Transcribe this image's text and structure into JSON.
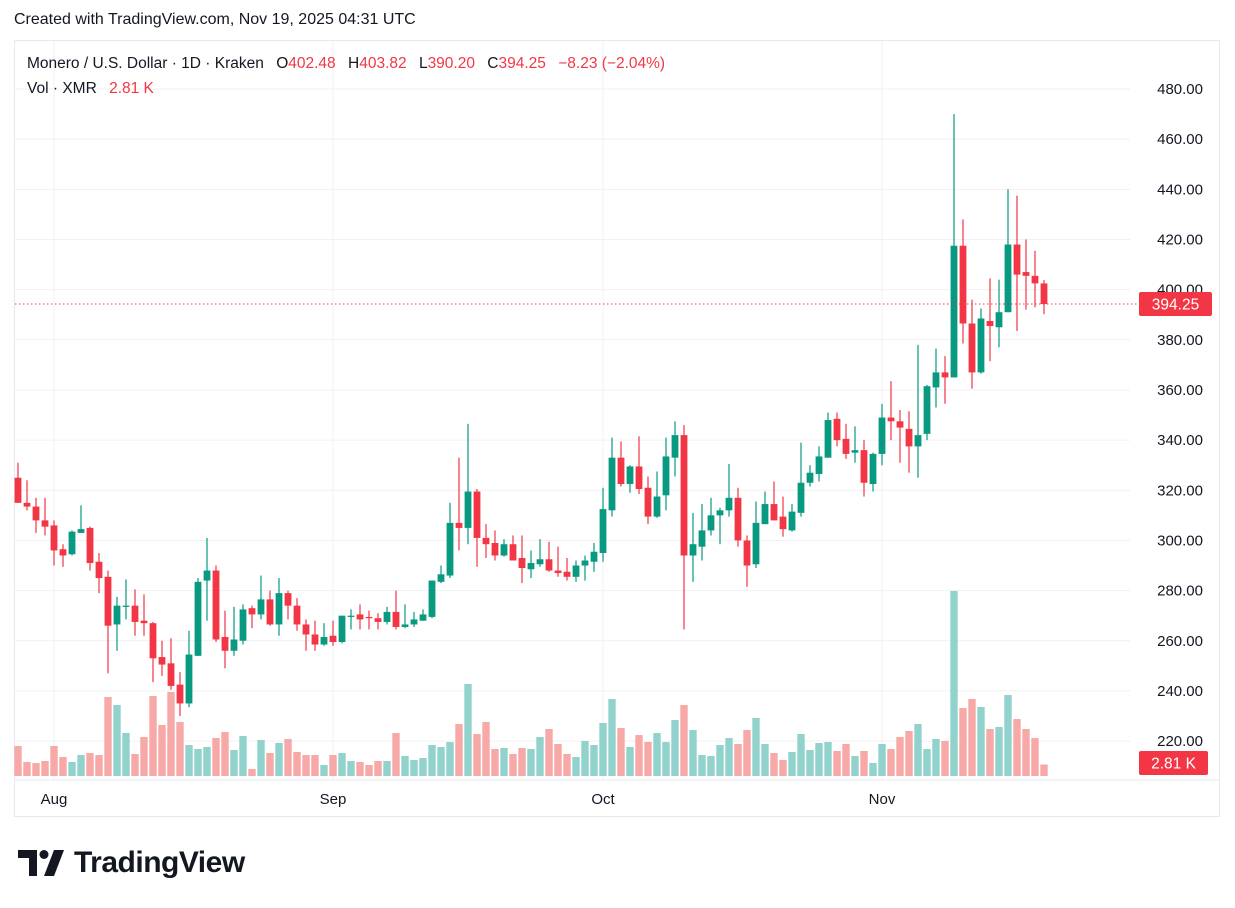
{
  "header": {
    "created": "Created with TradingView.com, Nov 19, 2025 04:31 UTC"
  },
  "legend": {
    "symbol": "Monero / U.S. Dollar · 1D · Kraken",
    "o_label": "O",
    "o": "402.48",
    "h_label": "H",
    "h": "403.82",
    "l_label": "L",
    "l": "390.20",
    "c_label": "C",
    "c": "394.25",
    "change": "−8.23 (−2.04%)",
    "vol_label": "Vol · XMR",
    "vol": "2.81 K"
  },
  "price_label": "394.25",
  "volume_label": "2.81 K",
  "logo": {
    "text": "TradingView"
  },
  "colors": {
    "up": "#089981",
    "down": "#f23645",
    "vol_up": "#92d2cc",
    "vol_down": "#f7a9a7",
    "grid": "#f0f1f4"
  },
  "chart_data": {
    "type": "candlestick",
    "ylim": [
      210,
      485
    ],
    "y_ticks": [
      "220.00",
      "240.00",
      "260.00",
      "280.00",
      "300.00",
      "320.00",
      "340.00",
      "360.00",
      "380.00",
      "400.00",
      "420.00",
      "440.00",
      "460.00",
      "480.00"
    ],
    "x_ticks": [
      {
        "label": "Aug",
        "date": "2025-08-01"
      },
      {
        "label": "Sep",
        "date": "2025-09-01"
      },
      {
        "label": "Oct",
        "date": "2025-10-01"
      },
      {
        "label": "Nov",
        "date": "2025-11-01"
      }
    ],
    "last_price": 394.25,
    "volume_unit": "K XMR",
    "columns": [
      "date",
      "open",
      "high",
      "low",
      "close",
      "volume"
    ],
    "candles": [
      [
        "2025-07-28",
        325,
        331,
        315,
        315,
        7.32
      ],
      [
        "2025-07-29",
        315,
        324,
        312,
        313.5,
        3.42
      ],
      [
        "2025-07-30",
        313.5,
        317,
        303,
        308,
        3.17
      ],
      [
        "2025-07-31",
        308,
        317,
        302,
        305.5,
        3.66
      ],
      [
        "2025-08-01",
        306,
        308,
        290,
        296,
        7.32
      ],
      [
        "2025-08-02",
        296.5,
        298.5,
        289.5,
        294,
        4.64
      ],
      [
        "2025-08-03",
        294.5,
        304,
        294,
        303.5,
        3.42
      ],
      [
        "2025-08-04",
        303,
        314,
        303,
        304.5,
        5.12
      ],
      [
        "2025-08-05",
        305,
        305.5,
        288,
        291,
        5.61
      ],
      [
        "2025-08-06",
        291.5,
        295,
        279,
        285,
        5.12
      ],
      [
        "2025-08-07",
        285.5,
        288,
        247,
        266,
        19.28
      ],
      [
        "2025-08-08",
        266.5,
        277.5,
        256,
        274,
        17.32
      ],
      [
        "2025-08-09",
        273.5,
        284.5,
        268.5,
        274,
        10.49
      ],
      [
        "2025-08-10",
        274,
        280.5,
        262,
        267.5,
        5.37
      ],
      [
        "2025-08-11",
        268,
        278.5,
        262,
        267,
        9.52
      ],
      [
        "2025-08-12",
        267,
        267.5,
        243.5,
        253,
        19.52
      ],
      [
        "2025-08-13",
        253.5,
        260,
        246,
        250.5,
        12.44
      ],
      [
        "2025-08-14",
        251,
        261,
        240.5,
        242,
        20.5
      ],
      [
        "2025-08-15",
        242.5,
        247.5,
        230,
        235,
        13.18
      ],
      [
        "2025-08-16",
        235,
        264,
        233.5,
        254.5,
        7.56
      ],
      [
        "2025-08-17",
        254,
        285,
        254,
        283.5,
        6.59
      ],
      [
        "2025-08-18",
        284,
        301,
        268,
        288,
        7.08
      ],
      [
        "2025-08-19",
        288,
        290,
        259.5,
        260.5,
        9.27
      ],
      [
        "2025-08-20",
        261.5,
        272,
        249,
        256,
        10.74
      ],
      [
        "2025-08-21",
        256,
        273.5,
        254,
        260.5,
        6.34
      ],
      [
        "2025-08-22",
        260,
        274.5,
        258.5,
        272.5,
        9.76
      ],
      [
        "2025-08-23",
        273,
        274,
        265,
        270.5,
        1.71
      ],
      [
        "2025-08-24",
        270.5,
        286,
        268.5,
        276.5,
        8.78
      ],
      [
        "2025-08-25",
        276.5,
        280,
        266,
        266.5,
        5.61
      ],
      [
        "2025-08-26",
        266.5,
        285,
        262,
        279,
        8.05
      ],
      [
        "2025-08-27",
        279,
        280,
        268.5,
        274,
        9.03
      ],
      [
        "2025-08-28",
        274,
        277,
        264,
        266.5,
        5.86
      ],
      [
        "2025-08-29",
        266.5,
        268.5,
        256,
        262.5,
        5.12
      ],
      [
        "2025-08-30",
        262.5,
        268,
        256,
        258.5,
        5.12
      ],
      [
        "2025-08-31",
        258.5,
        267,
        258,
        261.5,
        2.68
      ],
      [
        "2025-09-01",
        262,
        268,
        258,
        259.5,
        5.12
      ],
      [
        "2025-09-02",
        259.5,
        270,
        259,
        270,
        5.61
      ],
      [
        "2025-09-03",
        269.5,
        272.5,
        264.5,
        270,
        3.66
      ],
      [
        "2025-09-04",
        270.5,
        274.5,
        264.5,
        268.5,
        3.42
      ],
      [
        "2025-09-05",
        269.5,
        272,
        264.5,
        269,
        2.68
      ],
      [
        "2025-09-06",
        269,
        271,
        264.5,
        267.5,
        3.66
      ],
      [
        "2025-09-07",
        267.5,
        273.5,
        266.5,
        271.5,
        3.66
      ],
      [
        "2025-09-08",
        271.5,
        280,
        264.5,
        265.5,
        10.49
      ],
      [
        "2025-09-09",
        265.5,
        274.5,
        265,
        266.5,
        4.88
      ],
      [
        "2025-09-10",
        266.5,
        271.5,
        265.5,
        268.5,
        3.9
      ],
      [
        "2025-09-11",
        268,
        272.5,
        268,
        270.5,
        4.39
      ],
      [
        "2025-09-12",
        269.5,
        284,
        269,
        284,
        7.56
      ],
      [
        "2025-09-13",
        283.5,
        290,
        283,
        286.5,
        7.08
      ],
      [
        "2025-09-14",
        286,
        315,
        285,
        307,
        8.3
      ],
      [
        "2025-09-15",
        307,
        333,
        296,
        305,
        12.69
      ],
      [
        "2025-09-16",
        305,
        346.5,
        298.5,
        319.5,
        22.45
      ],
      [
        "2025-09-17",
        319.5,
        320.5,
        289.5,
        301,
        10.25
      ],
      [
        "2025-09-18",
        301,
        306.5,
        293,
        298.5,
        13.18
      ],
      [
        "2025-09-19",
        299,
        304,
        292,
        294,
        6.59
      ],
      [
        "2025-09-20",
        294,
        300.5,
        293.5,
        298.5,
        6.83
      ],
      [
        "2025-09-21",
        298.5,
        302,
        292,
        292,
        5.37
      ],
      [
        "2025-09-22",
        293,
        302,
        283,
        289,
        6.83
      ],
      [
        "2025-09-23",
        288.5,
        296,
        285,
        291,
        6.59
      ],
      [
        "2025-09-24",
        290.5,
        300.5,
        289.5,
        292.5,
        9.52
      ],
      [
        "2025-09-25",
        292.5,
        299.5,
        287.5,
        288,
        11.47
      ],
      [
        "2025-09-26",
        288,
        297.5,
        285.5,
        287,
        7.81
      ],
      [
        "2025-09-27",
        287.5,
        293,
        284,
        285.5,
        5.37
      ],
      [
        "2025-09-28",
        285.5,
        292,
        283.5,
        290,
        4.64
      ],
      [
        "2025-09-29",
        290,
        294,
        284,
        292,
        8.54
      ],
      [
        "2025-09-30",
        291.5,
        299,
        287.5,
        295.5,
        7.56
      ],
      [
        "2025-10-01",
        295,
        321,
        291.5,
        312.5,
        12.93
      ],
      [
        "2025-10-02",
        312,
        341,
        309.5,
        333,
        18.79
      ],
      [
        "2025-10-03",
        333,
        339.5,
        321.5,
        322.5,
        11.71
      ],
      [
        "2025-10-04",
        322.5,
        330,
        319,
        329.5,
        7.08
      ],
      [
        "2025-10-05",
        329.5,
        341.5,
        318.5,
        320.5,
        10
      ],
      [
        "2025-10-06",
        321,
        325.5,
        306.5,
        309.5,
        8.3
      ],
      [
        "2025-10-07",
        309.5,
        327.5,
        309,
        317.5,
        10.49
      ],
      [
        "2025-10-08",
        318,
        341,
        312,
        333.5,
        8.3
      ],
      [
        "2025-10-09",
        333,
        347.5,
        325.5,
        342,
        13.66
      ],
      [
        "2025-10-10",
        342,
        346,
        264.5,
        294,
        17.32
      ],
      [
        "2025-10-11",
        294,
        311,
        283.5,
        298.5,
        11.22
      ],
      [
        "2025-10-12",
        297.5,
        314.5,
        292,
        304,
        5.12
      ],
      [
        "2025-10-13",
        304,
        317,
        302,
        310,
        4.88
      ],
      [
        "2025-10-14",
        310,
        313,
        298.5,
        312,
        7.56
      ],
      [
        "2025-10-15",
        312,
        330.5,
        309.5,
        317,
        9.27
      ],
      [
        "2025-10-16",
        317,
        321,
        297.5,
        300,
        7.81
      ],
      [
        "2025-10-17",
        300,
        302,
        281.5,
        290,
        11.22
      ],
      [
        "2025-10-18",
        290.5,
        315.5,
        289,
        307,
        14.15
      ],
      [
        "2025-10-19",
        306.5,
        319.5,
        306.5,
        314.5,
        7.81
      ],
      [
        "2025-10-20",
        314.5,
        323.5,
        308,
        308,
        5.61
      ],
      [
        "2025-10-21",
        309.5,
        317.5,
        301.5,
        304.5,
        3.9
      ],
      [
        "2025-10-22",
        304,
        314.5,
        303.5,
        311.5,
        5.86
      ],
      [
        "2025-10-23",
        311,
        339,
        309.5,
        323,
        10.25
      ],
      [
        "2025-10-24",
        323,
        330,
        321.5,
        327,
        6.34
      ],
      [
        "2025-10-25",
        326.5,
        337.5,
        323.5,
        333.5,
        8.05
      ],
      [
        "2025-10-26",
        333,
        351,
        333,
        348,
        8.3
      ],
      [
        "2025-10-27",
        348.5,
        351,
        337.5,
        340,
        6.1
      ],
      [
        "2025-10-28",
        340.5,
        346.5,
        332.5,
        334.5,
        7.81
      ],
      [
        "2025-10-29",
        335,
        345.5,
        331,
        336,
        4.88
      ],
      [
        "2025-10-30",
        336,
        340,
        317.5,
        323,
        6.1
      ],
      [
        "2025-10-31",
        322.5,
        335,
        319.5,
        334.5,
        3.17
      ],
      [
        "2025-11-01",
        334.5,
        354.5,
        330,
        349,
        7.81
      ],
      [
        "2025-11-02",
        349,
        363.5,
        340,
        347.5,
        6.59
      ],
      [
        "2025-11-03",
        347.5,
        352,
        331,
        345,
        9.52
      ],
      [
        "2025-11-04",
        344.5,
        351.5,
        327,
        337.5,
        10.98
      ],
      [
        "2025-11-05",
        337.5,
        378,
        325,
        342,
        12.69
      ],
      [
        "2025-11-06",
        342.5,
        362,
        340,
        361.5,
        6.59
      ],
      [
        "2025-11-07",
        361,
        376.5,
        353,
        367,
        9.03
      ],
      [
        "2025-11-08",
        367,
        373.5,
        354.5,
        365,
        8.54
      ],
      [
        "2025-11-09",
        365,
        470,
        365,
        417.5,
        45.14
      ],
      [
        "2025-11-10",
        417.5,
        428,
        378.5,
        386.5,
        16.59
      ],
      [
        "2025-11-11",
        386.5,
        396,
        360.5,
        367,
        18.79
      ],
      [
        "2025-11-12",
        367,
        392.5,
        366.5,
        388.5,
        16.84
      ],
      [
        "2025-11-13",
        387.5,
        404.5,
        371.5,
        385.5,
        11.47
      ],
      [
        "2025-11-14",
        385,
        404,
        377,
        391,
        11.96
      ],
      [
        "2025-11-15",
        391,
        440,
        391,
        418,
        19.76
      ],
      [
        "2025-11-16",
        418,
        437.5,
        383.5,
        406,
        13.91
      ],
      [
        "2025-11-17",
        407,
        420,
        392,
        405.5,
        11.47
      ],
      [
        "2025-11-18",
        405.5,
        415.5,
        393,
        402.5,
        9.27
      ],
      [
        "2025-11-19",
        402.48,
        403.82,
        390.2,
        394.25,
        2.81
      ]
    ]
  }
}
